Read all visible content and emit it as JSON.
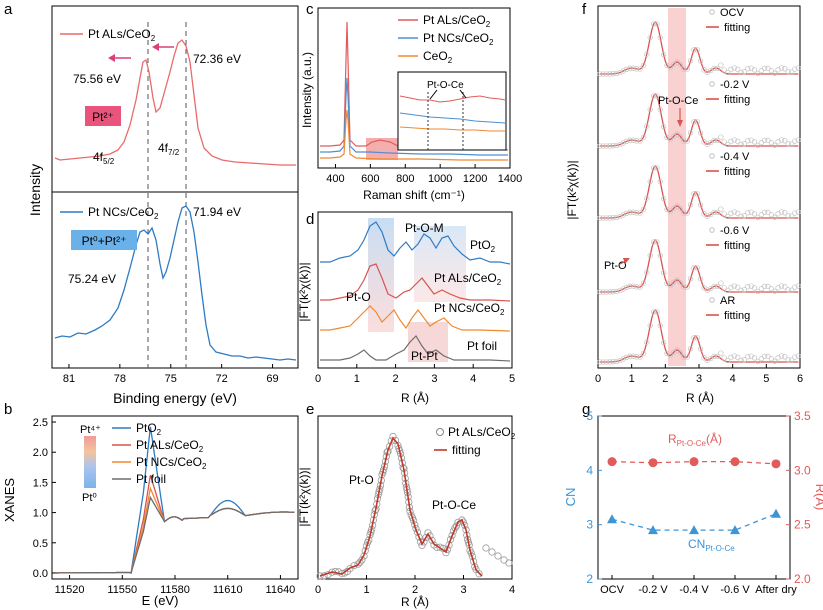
{
  "panels": {
    "a": {
      "letter": "a",
      "chart_data": {
        "type": "line",
        "xlabel": "Binding energy (eV)",
        "ylabel": "Intensity",
        "xticks": [
          "81",
          "78",
          "75",
          "72",
          "69"
        ],
        "xlim": [
          82,
          67.5
        ],
        "series": [
          {
            "name": "Pt ALs/CeO₂",
            "color": "#e86b6b",
            "peaks": [
              75.56,
              72.36
            ]
          },
          {
            "name": "Pt NCs/CeO₂",
            "color": "#2e7bc4",
            "peaks": [
              75.24,
              71.94
            ]
          }
        ],
        "annotations": {
          "top_peak_left": "75.56 eV",
          "top_peak_right": "72.36 eV",
          "badge_top": "Pt²⁺",
          "orbital_left": "4f",
          "orbital_left_sub": "5/2",
          "orbital_right": "4f",
          "orbital_right_sub": "7/2",
          "bottom_peak_left": "75.24 eV",
          "bottom_peak_right": "71.94 eV",
          "badge_bottom": "Pt⁰+Pt²⁺"
        },
        "colors": {
          "badge_top": "#e8547c",
          "badge_bottom": "#6ab1ea",
          "arrow": "#d9407a"
        }
      }
    },
    "b": {
      "letter": "b",
      "chart_data": {
        "type": "line",
        "xlabel": "E (eV)",
        "ylabel": "XANES",
        "xlim": [
          11510,
          11650
        ],
        "ylim": [
          -0.1,
          2.6
        ],
        "xticks": [
          11520,
          11550,
          11580,
          11610,
          11640
        ],
        "yticks": [
          0.0,
          0.5,
          1.0,
          1.5,
          2.0,
          2.5
        ],
        "series": [
          {
            "name": "PtO₂",
            "color": "#2e7bc4",
            "white_line": 2.42
          },
          {
            "name": "Pt ALs/CeO₂",
            "color": "#d9534f",
            "white_line": 1.62
          },
          {
            "name": "Pt NCs/CeO₂",
            "color": "#f0892f",
            "white_line": 1.4
          },
          {
            "name": "Pt foil",
            "color": "#6d6d6d",
            "white_line": 1.25
          }
        ],
        "colorbar": {
          "top": "Pt⁴⁺",
          "bottom": "Pt⁰"
        }
      }
    },
    "c": {
      "letter": "c",
      "chart_data": {
        "type": "line",
        "xlabel": "Raman shift (cm⁻¹)",
        "ylabel": "Intensity (a.u.)",
        "xlim": [
          300,
          1400
        ],
        "xticks": [
          400,
          600,
          800,
          1000,
          1200,
          1400
        ],
        "series": [
          {
            "name": "Pt ALs/CeO₂",
            "color": "#e05c5c",
            "main_peak": 462
          },
          {
            "name": "Pt NCs/CeO₂",
            "color": "#4f8fcf",
            "main_peak": 462
          },
          {
            "name": "CeO₂",
            "color": "#f0892f",
            "main_peak": 462
          }
        ],
        "inset_label": "Pt-O-Ce"
      }
    },
    "d": {
      "letter": "d",
      "chart_data": {
        "type": "line",
        "xlabel": "R (Å)",
        "ylabel": "|FT(k²χ(k))|",
        "xlim": [
          0,
          5
        ],
        "xticks": [
          0,
          1,
          2,
          3,
          4,
          5
        ],
        "series": [
          {
            "name": "PtO₂",
            "color": "#2e7bc4"
          },
          {
            "name": "Pt ALs/CeO₂",
            "color": "#d9534f"
          },
          {
            "name": "Pt NCs/CeO₂",
            "color": "#f0892f"
          },
          {
            "name": "Pt foil",
            "color": "#6d6d6d"
          }
        ],
        "annotations": {
          "pt_o_m": "Pt-O-M",
          "pt_o": "Pt-O",
          "pt_pt": "Pt-Pt"
        }
      }
    },
    "e": {
      "letter": "e",
      "chart_data": {
        "type": "line",
        "xlabel": "R (Å)",
        "ylabel": "|FT(k²χ(k))|",
        "xlim": [
          0,
          4
        ],
        "xticks": [
          0,
          1,
          2,
          3,
          4
        ],
        "series": [
          {
            "name": "Pt ALs/CeO₂",
            "style": "open-circles",
            "color": "#888888"
          },
          {
            "name": "fitting",
            "color": "#c0392b"
          }
        ],
        "annotations": {
          "pt_o": "Pt-O",
          "pt_o_ce": "Pt-O-Ce"
        }
      }
    },
    "f": {
      "letter": "f",
      "chart_data": {
        "type": "line",
        "xlabel": "R (Å)",
        "ylabel": "|FT(k²χ(k))|",
        "xlim": [
          0,
          6
        ],
        "xticks": [
          0,
          1,
          2,
          3,
          4,
          5,
          6
        ],
        "conditions": [
          "OCV",
          "-0.2 V",
          "-0.4 V",
          "-0.6 V",
          "AR"
        ],
        "fit_label": "fitting",
        "annotations": {
          "pt_o_ce": "Pt-O-Ce",
          "pt_o": "Pt-O"
        },
        "colors": {
          "fit": "#d9534f",
          "data": "#b0b0b0",
          "band": "#f8c6c6"
        }
      }
    },
    "g": {
      "letter": "g",
      "chart_data": {
        "type": "scatter",
        "categories": [
          "OCV",
          "-0.2 V",
          "-0.4 V",
          "-0.6 V",
          "After dry"
        ],
        "ylabel_left": "CN",
        "ylabel_right": "R(Å)",
        "ylim_left": [
          2,
          5
        ],
        "ylim_right": [
          2.0,
          3.5
        ],
        "yticks_left": [
          2,
          3,
          4,
          5
        ],
        "yticks_right": [
          2.0,
          2.5,
          3.0,
          3.5
        ],
        "series": [
          {
            "name": "CN",
            "label": "CN",
            "label_sub": "Pt-O-Ce",
            "axis": "left",
            "color": "#3d95d6",
            "values": [
              3.1,
              2.9,
              2.9,
              2.9,
              3.2
            ]
          },
          {
            "name": "R",
            "label": "R",
            "label_sub": "Pt-O-Ce",
            "label_suffix": "(Å)",
            "axis": "right",
            "color": "#e35a5a",
            "values": [
              3.08,
              3.07,
              3.08,
              3.08,
              3.06
            ]
          }
        ]
      }
    }
  }
}
